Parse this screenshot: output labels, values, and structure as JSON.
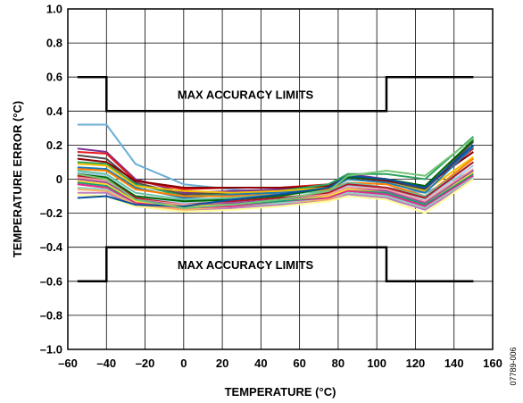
{
  "chart_data": {
    "type": "line",
    "title": "",
    "xlabel": "TEMPERATURE (°C)",
    "ylabel": "TEMPERATURE ERROR (°C)",
    "xlim": [
      -60,
      160
    ],
    "ylim": [
      -1.0,
      1.0
    ],
    "x_ticks": [
      "–60",
      "–40",
      "–20",
      "0",
      "20",
      "40",
      "60",
      "80",
      "100",
      "120",
      "140",
      "160"
    ],
    "y_ticks": [
      "1.0",
      "0.8",
      "0.6",
      "0.4",
      "0.2",
      "0",
      "–0.2",
      "–0.4",
      "–0.6",
      "–0.8",
      "–1.0"
    ],
    "grid": true,
    "x": [
      -55,
      -40,
      -25,
      0,
      25,
      50,
      75,
      85,
      105,
      125,
      150
    ],
    "limits": {
      "label": "MAX ACCURACY LIMITS",
      "upper": {
        "x": [
          -55,
          -40,
          -40,
          105,
          105,
          150
        ],
        "y": [
          0.6,
          0.6,
          0.4,
          0.4,
          0.6,
          0.6
        ]
      },
      "lower": {
        "x": [
          -55,
          -40,
          -40,
          105,
          105,
          150
        ],
        "y": [
          -0.6,
          -0.6,
          -0.4,
          -0.4,
          -0.6,
          -0.6
        ]
      }
    },
    "series": [
      {
        "color": "#6baed6",
        "values": [
          0.32,
          0.32,
          0.09,
          -0.03,
          -0.06,
          -0.08,
          -0.06,
          -0.03,
          -0.05,
          -0.08,
          0.05
        ]
      },
      {
        "color": "#7b3294",
        "values": [
          0.18,
          0.16,
          0.0,
          -0.08,
          -0.07,
          -0.06,
          -0.04,
          0.03,
          0.0,
          -0.06,
          0.2
        ]
      },
      {
        "color": "#e41a1c",
        "values": [
          0.16,
          0.15,
          -0.01,
          -0.06,
          -0.05,
          -0.05,
          -0.03,
          0.02,
          0.0,
          -0.05,
          0.18
        ]
      },
      {
        "color": "#4d4d4d",
        "values": [
          0.14,
          0.12,
          -0.02,
          -0.09,
          -0.08,
          -0.07,
          -0.04,
          0.02,
          -0.01,
          -0.06,
          0.22
        ]
      },
      {
        "color": "#8b0000",
        "values": [
          0.12,
          0.1,
          -0.01,
          -0.05,
          -0.05,
          -0.05,
          -0.04,
          0.01,
          -0.01,
          -0.04,
          0.16
        ]
      },
      {
        "color": "#2ca25f",
        "values": [
          0.1,
          0.09,
          -0.03,
          -0.1,
          -0.09,
          -0.07,
          -0.03,
          0.03,
          0.03,
          0.0,
          0.25
        ]
      },
      {
        "color": "#f0c000",
        "values": [
          0.09,
          0.08,
          -0.04,
          -0.07,
          -0.08,
          -0.07,
          -0.05,
          0.0,
          -0.02,
          -0.07,
          0.13
        ]
      },
      {
        "color": "#1f78b4",
        "values": [
          0.07,
          0.06,
          -0.05,
          -0.11,
          -0.09,
          -0.08,
          -0.06,
          0.0,
          -0.02,
          -0.08,
          0.19
        ]
      },
      {
        "color": "#ff7f00",
        "values": [
          0.06,
          0.05,
          -0.06,
          -0.1,
          -0.1,
          -0.09,
          -0.06,
          -0.02,
          -0.03,
          -0.1,
          0.12
        ]
      },
      {
        "color": "#66c2a5",
        "values": [
          0.05,
          0.03,
          -0.08,
          -0.12,
          -0.11,
          -0.09,
          -0.07,
          -0.02,
          -0.05,
          -0.1,
          0.1
        ]
      },
      {
        "color": "#a6cee3",
        "values": [
          0.04,
          0.02,
          -0.1,
          -0.14,
          -0.13,
          -0.11,
          -0.09,
          -0.04,
          -0.06,
          -0.12,
          0.08
        ]
      },
      {
        "color": "#006400",
        "values": [
          0.03,
          0.01,
          -0.1,
          -0.13,
          -0.12,
          -0.1,
          -0.05,
          0.01,
          0.0,
          -0.04,
          0.23
        ]
      },
      {
        "color": "#b2182b",
        "values": [
          0.02,
          0.0,
          -0.11,
          -0.15,
          -0.13,
          -0.11,
          -0.08,
          -0.03,
          -0.05,
          -0.11,
          0.1
        ]
      },
      {
        "color": "#fb9a99",
        "values": [
          0.01,
          -0.01,
          -0.12,
          -0.15,
          -0.14,
          -0.12,
          -0.09,
          -0.05,
          -0.06,
          -0.13,
          0.06
        ]
      },
      {
        "color": "#984ea3",
        "values": [
          0.0,
          -0.02,
          -0.12,
          -0.16,
          -0.14,
          -0.12,
          -0.1,
          -0.06,
          -0.07,
          -0.14,
          0.05
        ]
      },
      {
        "color": "#ffd92f",
        "values": [
          -0.01,
          -0.03,
          -0.13,
          -0.16,
          -0.15,
          -0.13,
          -0.1,
          -0.06,
          -0.08,
          -0.15,
          0.04
        ]
      },
      {
        "color": "#1b9e77",
        "values": [
          -0.02,
          -0.04,
          -0.14,
          -0.17,
          -0.15,
          -0.13,
          -0.11,
          -0.07,
          -0.08,
          -0.15,
          0.03
        ]
      },
      {
        "color": "#e7298a",
        "values": [
          -0.03,
          -0.05,
          -0.14,
          -0.17,
          -0.16,
          -0.14,
          -0.11,
          -0.07,
          -0.09,
          -0.16,
          0.02
        ]
      },
      {
        "color": "#8dd3c7",
        "values": [
          -0.05,
          -0.06,
          -0.15,
          -0.18,
          -0.17,
          -0.14,
          -0.12,
          -0.08,
          -0.1,
          -0.17,
          0.01
        ]
      },
      {
        "color": "#fdae61",
        "values": [
          -0.06,
          -0.07,
          -0.15,
          -0.18,
          -0.17,
          -0.15,
          -0.12,
          -0.09,
          -0.11,
          -0.18,
          0.0
        ]
      },
      {
        "color": "#bc80bd",
        "values": [
          -0.08,
          -0.08,
          -0.16,
          -0.19,
          -0.17,
          -0.15,
          -0.13,
          -0.09,
          -0.11,
          -0.18,
          0.0
        ]
      },
      {
        "color": "#ffff99",
        "values": [
          -0.09,
          -0.1,
          -0.16,
          -0.19,
          -0.18,
          -0.16,
          -0.13,
          -0.1,
          -0.12,
          -0.2,
          0.0
        ]
      },
      {
        "color": "#08519c",
        "values": [
          -0.11,
          -0.1,
          -0.15,
          -0.16,
          -0.12,
          -0.09,
          -0.05,
          0.02,
          0.0,
          -0.05,
          0.2
        ]
      },
      {
        "color": "#74c476",
        "values": [
          0.03,
          0.0,
          -0.12,
          -0.17,
          -0.15,
          -0.12,
          -0.07,
          0.02,
          0.05,
          0.02,
          0.24
        ]
      }
    ]
  },
  "figure_id": "07789-006"
}
